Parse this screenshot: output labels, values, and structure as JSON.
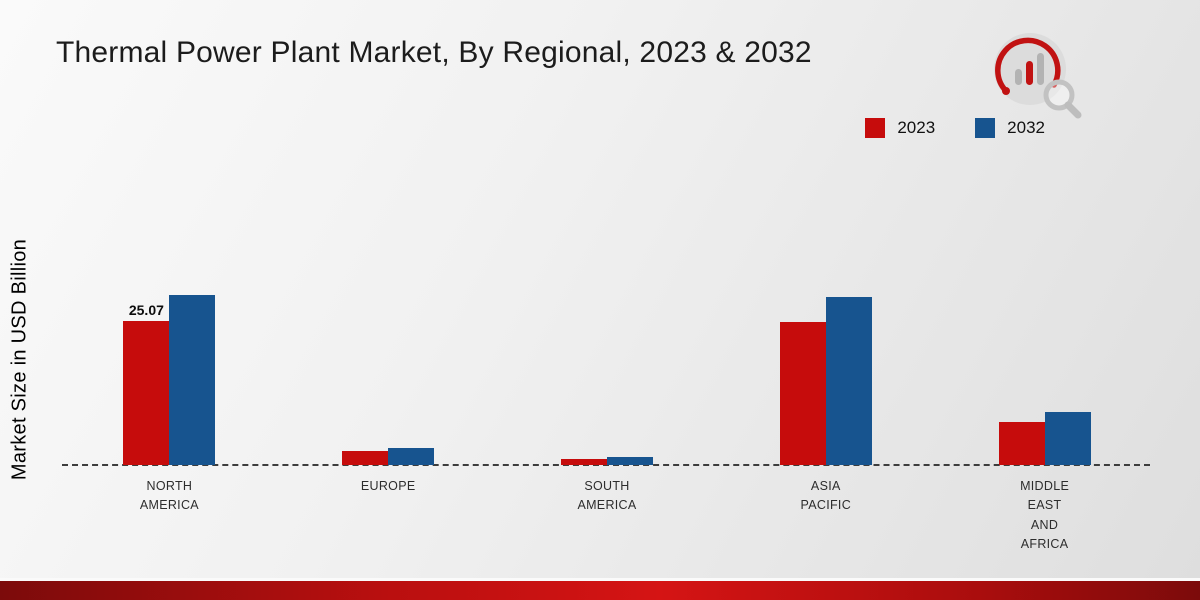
{
  "chart_data": {
    "type": "bar",
    "title": "Thermal Power Plant Market, By Regional, 2023 & 2032",
    "ylabel": "Market Size in USD Billion",
    "xlabel": "",
    "ylim": [
      0,
      32
    ],
    "grid": false,
    "baseline_style": "dashed",
    "legend_position": "top-right",
    "categories": [
      "NORTH AMERICA",
      "EUROPE",
      "SOUTH AMERICA",
      "ASIA PACIFIC",
      "MIDDLE EAST AND AFRICA"
    ],
    "category_label_lines": [
      [
        "NORTH",
        "AMERICA"
      ],
      [
        "EUROPE"
      ],
      [
        "SOUTH",
        "AMERICA"
      ],
      [
        "ASIA",
        "PACIFIC"
      ],
      [
        "MIDDLE",
        "EAST",
        "AND",
        "AFRICA"
      ]
    ],
    "series": [
      {
        "name": "2023",
        "color": "#c60c0c",
        "values": [
          25.07,
          2.5,
          1.0,
          24.8,
          7.5
        ]
      },
      {
        "name": "2032",
        "color": "#17548f",
        "values": [
          29.5,
          3.0,
          1.4,
          29.3,
          9.3
        ]
      }
    ],
    "bar_labels": [
      {
        "series": 0,
        "category": 0,
        "text": "25.07"
      }
    ],
    "legend": {
      "items": [
        {
          "label": "2023",
          "color": "#c60c0c"
        },
        {
          "label": "2032",
          "color": "#17548f"
        }
      ]
    }
  },
  "branding": {
    "logo_icon": "bar-chart-magnifier-logo",
    "accent_strip_colors": [
      "#7c0b0b",
      "#d51414",
      "#7c0b0b"
    ]
  }
}
